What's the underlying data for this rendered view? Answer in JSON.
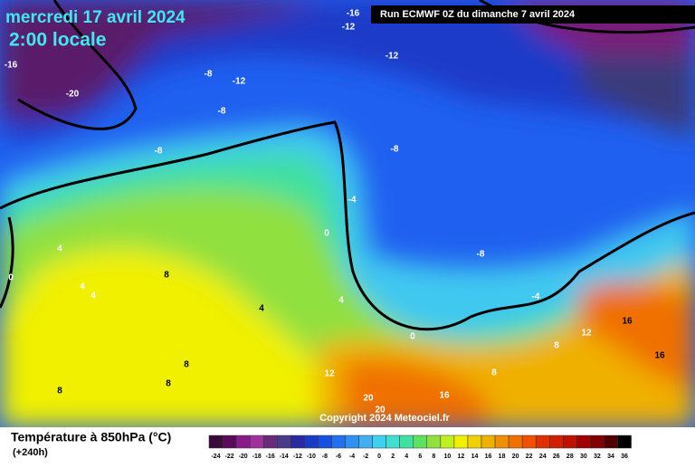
{
  "header": {
    "title": "mercredi 17 avril 2024",
    "subtitle": "2:00 locale",
    "run": "Run ECMWF 0Z du dimanche 7 avril 2024"
  },
  "map": {
    "copyright": "Copyright 2024 Meteociel.fr",
    "contour_labels": [
      "-16",
      "-12",
      "-16",
      "-20",
      "-8",
      "-12",
      "-12",
      "-8",
      "-8",
      "-8",
      "-4",
      "0",
      "4",
      "0",
      "4",
      "4",
      "8",
      "4",
      "4",
      "-8",
      "-4",
      "0",
      "16",
      "12",
      "8",
      "16",
      "16",
      "12",
      "8",
      "8",
      "8",
      "20",
      "20",
      "8"
    ]
  },
  "legend": {
    "title": "Température à 850hPa (°C)",
    "lead": "(+240h)",
    "labels": [
      -24,
      -22,
      -20,
      -18,
      -16,
      -14,
      -12,
      -10,
      -8,
      -6,
      -4,
      -2,
      0,
      2,
      4,
      6,
      8,
      10,
      12,
      14,
      16,
      18,
      20,
      22,
      24,
      26,
      28,
      30,
      32,
      34,
      36
    ],
    "colors": [
      "#3a0a3a",
      "#5a0a5a",
      "#8a1a8a",
      "#a030a0",
      "#6a2a7a",
      "#4a3a8a",
      "#2a2aa0",
      "#1a3ac8",
      "#1a50e0",
      "#2070f0",
      "#3090f0",
      "#40b0f0",
      "#40d0f0",
      "#40e0d0",
      "#40e0a0",
      "#60e060",
      "#90e040",
      "#c0f020",
      "#f0f000",
      "#f0d000",
      "#f0b000",
      "#f09000",
      "#f07000",
      "#f05000",
      "#e03000",
      "#d02000",
      "#c01000",
      "#a00000",
      "#800000",
      "#500000",
      "#000000"
    ]
  }
}
